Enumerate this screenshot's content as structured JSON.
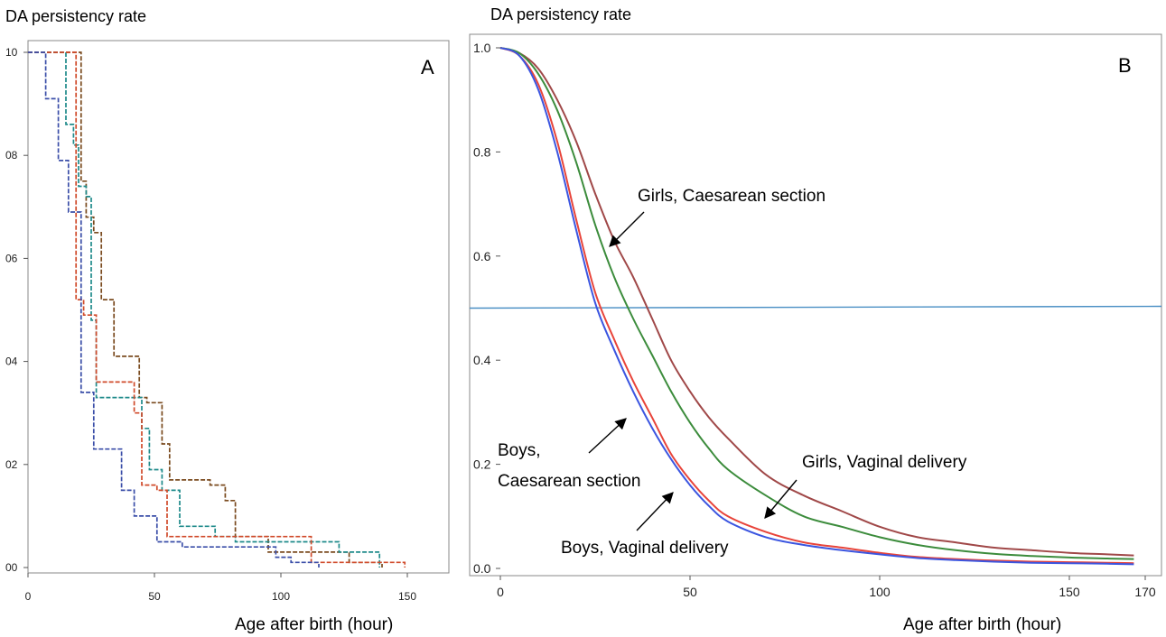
{
  "chart_data": [
    {
      "panel": "A",
      "type": "line",
      "step": true,
      "ylabel": "DA persistency rate",
      "xlabel": "Age after birth (hour)",
      "xlim": [
        0,
        170
      ],
      "ylim": [
        0,
        1
      ],
      "xticks": [
        0,
        50,
        100,
        150
      ],
      "xtick_labels": [
        "0",
        "50",
        "100",
        "150"
      ],
      "yticks": [
        0,
        0.2,
        0.4,
        0.6,
        0.8,
        1.0
      ],
      "ytick_labels": [
        "00",
        "02",
        "04",
        "06",
        "08",
        "10"
      ],
      "series": [
        {
          "color": "#7a4a1e",
          "dashed": true,
          "x": [
            0,
            21,
            21,
            23,
            23,
            26,
            26,
            29,
            29,
            34,
            34,
            44,
            44,
            47,
            47,
            53,
            53,
            56,
            56,
            72,
            72,
            78,
            78,
            82,
            82,
            95,
            95,
            127,
            127,
            140,
            140
          ],
          "y": [
            1.0,
            1.0,
            0.75,
            0.75,
            0.68,
            0.68,
            0.65,
            0.65,
            0.52,
            0.52,
            0.41,
            0.41,
            0.33,
            0.33,
            0.32,
            0.32,
            0.24,
            0.24,
            0.17,
            0.17,
            0.16,
            0.16,
            0.13,
            0.13,
            0.06,
            0.06,
            0.03,
            0.03,
            0.01,
            0.01,
            0.0
          ]
        },
        {
          "color": "#1e8a8a",
          "dashed": true,
          "x": [
            0,
            15,
            15,
            18,
            18,
            20,
            20,
            23,
            23,
            25,
            25,
            27,
            27,
            45,
            45,
            48,
            48,
            53,
            53,
            60,
            60,
            74,
            74,
            82,
            82,
            123,
            123,
            139,
            139
          ],
          "y": [
            1.0,
            1.0,
            0.86,
            0.86,
            0.82,
            0.82,
            0.74,
            0.74,
            0.72,
            0.72,
            0.48,
            0.48,
            0.33,
            0.33,
            0.27,
            0.27,
            0.19,
            0.19,
            0.15,
            0.15,
            0.08,
            0.08,
            0.06,
            0.06,
            0.05,
            0.05,
            0.03,
            0.03,
            0.0
          ]
        },
        {
          "color": "#d04a2a",
          "dashed": true,
          "x": [
            0,
            19,
            19,
            22,
            22,
            27,
            27,
            42,
            42,
            45,
            45,
            51,
            51,
            55,
            55,
            112,
            112,
            149,
            149
          ],
          "y": [
            1.0,
            1.0,
            0.52,
            0.52,
            0.49,
            0.49,
            0.36,
            0.36,
            0.3,
            0.3,
            0.16,
            0.16,
            0.15,
            0.15,
            0.06,
            0.06,
            0.01,
            0.01,
            0.0
          ]
        },
        {
          "color": "#3a4ea8",
          "dashed": true,
          "x": [
            0,
            7,
            7,
            12,
            12,
            16,
            16,
            21,
            21,
            26,
            26,
            37,
            37,
            42,
            42,
            51,
            51,
            61,
            61,
            98,
            98,
            104,
            104,
            115,
            115
          ],
          "y": [
            1.0,
            1.0,
            0.91,
            0.91,
            0.79,
            0.79,
            0.69,
            0.69,
            0.34,
            0.34,
            0.23,
            0.23,
            0.15,
            0.15,
            0.1,
            0.1,
            0.05,
            0.05,
            0.04,
            0.04,
            0.02,
            0.02,
            0.01,
            0.01,
            0.0
          ]
        }
      ]
    },
    {
      "panel": "B",
      "type": "line",
      "ylabel": "DA persistency rate",
      "xlabel": "Age after birth (hour)",
      "xlim": [
        0,
        170
      ],
      "ylim": [
        0,
        1
      ],
      "xticks": [
        0,
        50,
        100,
        150,
        170
      ],
      "xtick_labels": [
        "0",
        "50",
        "100",
        "150",
        "170"
      ],
      "yticks": [
        0,
        0.2,
        0.4,
        0.6,
        0.8,
        1.0
      ],
      "ytick_labels": [
        "0.0",
        "0.2",
        "0.4",
        "0.6",
        "0.8",
        "1.0"
      ],
      "reference_line": {
        "y": 0.5,
        "color": "#4a8fc4"
      },
      "x": [
        0,
        5,
        10,
        15,
        20,
        25,
        30,
        35,
        40,
        45,
        50,
        55,
        60,
        70,
        80,
        90,
        100,
        110,
        120,
        130,
        140,
        150,
        160,
        167
      ],
      "series": [
        {
          "name": "Girls, Caesarean section",
          "color": "#a04848",
          "y": [
            1.0,
            0.99,
            0.96,
            0.9,
            0.82,
            0.72,
            0.63,
            0.56,
            0.48,
            0.4,
            0.34,
            0.29,
            0.25,
            0.18,
            0.14,
            0.11,
            0.08,
            0.06,
            0.05,
            0.04,
            0.035,
            0.03,
            0.027,
            0.025
          ]
        },
        {
          "name": "Girls, Vaginal delivery",
          "color": "#3c8c3c",
          "y": [
            1.0,
            0.99,
            0.95,
            0.88,
            0.78,
            0.66,
            0.56,
            0.48,
            0.41,
            0.34,
            0.28,
            0.23,
            0.19,
            0.14,
            0.1,
            0.08,
            0.06,
            0.045,
            0.035,
            0.028,
            0.024,
            0.021,
            0.019,
            0.018
          ]
        },
        {
          "name": "Boys, Caesarean section",
          "color": "#e8443a",
          "y": [
            1.0,
            0.985,
            0.93,
            0.82,
            0.67,
            0.53,
            0.44,
            0.36,
            0.29,
            0.22,
            0.17,
            0.13,
            0.1,
            0.07,
            0.05,
            0.04,
            0.03,
            0.022,
            0.018,
            0.015,
            0.013,
            0.012,
            0.011,
            0.01
          ]
        },
        {
          "name": "Boys, Vaginal delivery",
          "color": "#3b55e0",
          "y": [
            1.0,
            0.985,
            0.92,
            0.8,
            0.65,
            0.51,
            0.42,
            0.34,
            0.27,
            0.21,
            0.16,
            0.12,
            0.09,
            0.06,
            0.045,
            0.035,
            0.027,
            0.02,
            0.016,
            0.013,
            0.011,
            0.01,
            0.009,
            0.008
          ]
        }
      ],
      "annotations": [
        {
          "text": "Girls, Caesarean section",
          "series": "Girls, Caesarean section"
        },
        {
          "text": "Girls, Vaginal delivery",
          "series": "Girls, Vaginal delivery"
        },
        {
          "text": "Boys,",
          "series": "Boys, Caesarean section"
        },
        {
          "text": "Caesarean section",
          "series": "Boys, Caesarean section"
        },
        {
          "text": "Boys, Vaginal delivery",
          "series": "Boys, Vaginal delivery"
        }
      ]
    }
  ]
}
